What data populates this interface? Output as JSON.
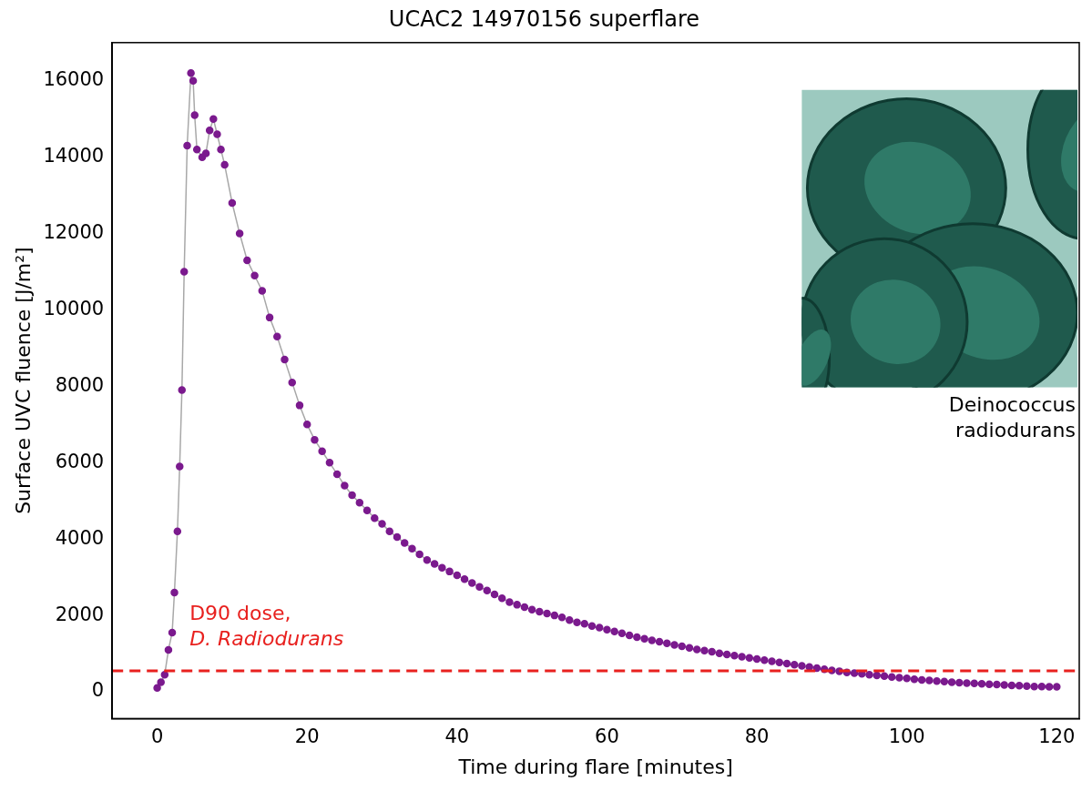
{
  "chart_data": {
    "type": "scatter",
    "title": "UCAC2 14970156 superflare",
    "x_label": "Time during flare [minutes]",
    "y_label": "Surface UVC fluence [J/m²]",
    "x": [
      0,
      0.5,
      1,
      1.5,
      2,
      2.3,
      2.7,
      3,
      3.3,
      3.6,
      4,
      4.5,
      4.8,
      5,
      5.3,
      6,
      6.5,
      7,
      7.5,
      8,
      8.5,
      9,
      10,
      11,
      12,
      13,
      14,
      15,
      16,
      17,
      18,
      19,
      20,
      21,
      22,
      23,
      24,
      25,
      26,
      27,
      28,
      29,
      30,
      31,
      32,
      33,
      34,
      35,
      36,
      37,
      38,
      39,
      40,
      41,
      42,
      43,
      44,
      45,
      46,
      47,
      48,
      49,
      50,
      51,
      52,
      53,
      54,
      55,
      56,
      57,
      58,
      59,
      60,
      61,
      62,
      63,
      64,
      65,
      66,
      67,
      68,
      69,
      70,
      71,
      72,
      73,
      74,
      75,
      76,
      77,
      78,
      79,
      80,
      81,
      82,
      83,
      84,
      85,
      86,
      87,
      88,
      89,
      90,
      91,
      92,
      93,
      94,
      95,
      96,
      97,
      98,
      99,
      100,
      101,
      102,
      103,
      104,
      105,
      106,
      107,
      108,
      109,
      110,
      111,
      112,
      113,
      114,
      115,
      116,
      117,
      118,
      119,
      120
    ],
    "values": [
      100,
      250,
      450,
      1100,
      1550,
      2600,
      4200,
      5900,
      7900,
      11000,
      14300,
      16200,
      16000,
      15100,
      14200,
      14000,
      14100,
      14700,
      15000,
      14600,
      14200,
      13800,
      12800,
      12000,
      11300,
      10900,
      10500,
      9800,
      9300,
      8700,
      8100,
      7500,
      7000,
      6600,
      6300,
      6000,
      5700,
      5400,
      5150,
      4950,
      4750,
      4550,
      4400,
      4200,
      4050,
      3900,
      3750,
      3600,
      3450,
      3350,
      3250,
      3150,
      3050,
      2950,
      2850,
      2750,
      2650,
      2550,
      2450,
      2350,
      2280,
      2220,
      2150,
      2100,
      2050,
      2000,
      1950,
      1880,
      1820,
      1780,
      1720,
      1680,
      1630,
      1580,
      1530,
      1480,
      1430,
      1390,
      1350,
      1310,
      1270,
      1230,
      1190,
      1150,
      1110,
      1080,
      1050,
      1010,
      980,
      950,
      920,
      890,
      860,
      830,
      800,
      770,
      740,
      710,
      680,
      650,
      620,
      590,
      560,
      540,
      510,
      490,
      470,
      450,
      430,
      410,
      390,
      370,
      350,
      330,
      310,
      300,
      280,
      270,
      250,
      240,
      230,
      220,
      210,
      200,
      190,
      180,
      170,
      160,
      150,
      140,
      140,
      130,
      130
    ],
    "color": "#7b1a8e",
    "marker": "circle",
    "xlim": [
      -6,
      123
    ],
    "xticks": [
      0,
      20,
      40,
      60,
      80,
      100,
      120
    ],
    "ylim": [
      -700,
      17000
    ],
    "yticks": [
      0,
      2000,
      4000,
      6000,
      8000,
      10000,
      12000,
      14000,
      16000
    ],
    "grid": false,
    "hline": {
      "value": 550,
      "label": [
        "D90 dose,",
        "D. Radiodurans"
      ],
      "color": "#e8201e",
      "line_style": "dashed"
    },
    "inset_caption": [
      "Deinococcus",
      "radiodurans"
    ]
  }
}
